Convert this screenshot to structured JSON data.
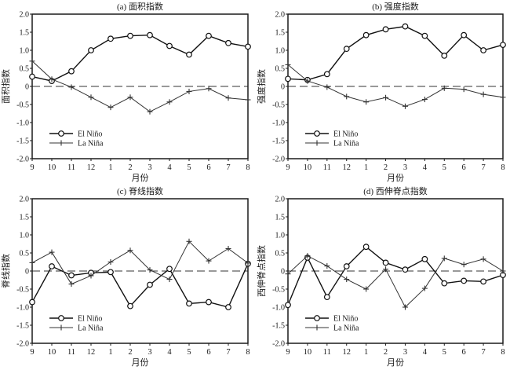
{
  "chart_data": [
    {
      "type": "line",
      "title": "(a) 面积指数",
      "xlabel": "月份",
      "ylabel": "面积指数",
      "categories": [
        "9",
        "10",
        "11",
        "12",
        "1",
        "2",
        "3",
        "4",
        "5",
        "6",
        "7",
        "8"
      ],
      "ylim": [
        -2.0,
        2.0
      ],
      "yticks": [
        "2.0",
        "1.5",
        "1.0",
        "0.5",
        "0",
        "-0.5",
        "-1.0",
        "-1.5",
        "-2.0"
      ],
      "ytick_values": [
        2.0,
        1.5,
        1.0,
        0.5,
        0,
        -0.5,
        -1.0,
        -1.5,
        -2.0
      ],
      "reference_line": 0,
      "legend_position": "bottom-left",
      "series": [
        {
          "name": "El Niño",
          "marker": "circle",
          "values": [
            0.27,
            0.15,
            0.42,
            1.0,
            1.32,
            1.4,
            1.42,
            1.12,
            0.88,
            1.4,
            1.2,
            1.1
          ]
        },
        {
          "name": "La Niña",
          "marker": "plus",
          "values": [
            0.7,
            0.2,
            -0.02,
            -0.3,
            -0.58,
            -0.3,
            -0.7,
            -0.43,
            -0.14,
            -0.06,
            -0.32,
            -0.37
          ]
        }
      ]
    },
    {
      "type": "line",
      "title": "(b) 强度指数",
      "xlabel": "月份",
      "ylabel": "强度指数",
      "categories": [
        "9",
        "10",
        "11",
        "12",
        "1",
        "2",
        "3",
        "4",
        "5",
        "6",
        "7",
        "8"
      ],
      "ylim": [
        -2.0,
        2.0
      ],
      "yticks": [
        "2.0",
        "1.5",
        "1.0",
        "0.5",
        "0",
        "-0.5",
        "-1.0",
        "-1.5",
        "-2.0"
      ],
      "ytick_values": [
        2.0,
        1.5,
        1.0,
        0.5,
        0,
        -0.5,
        -1.0,
        -1.5,
        -2.0
      ],
      "reference_line": 0,
      "legend_position": "bottom-left",
      "series": [
        {
          "name": "El Niño",
          "marker": "circle",
          "values": [
            0.21,
            0.18,
            0.34,
            1.04,
            1.42,
            1.58,
            1.66,
            1.4,
            0.85,
            1.42,
            1.0,
            1.15
          ]
        },
        {
          "name": "La Niña",
          "marker": "plus",
          "values": [
            0.6,
            0.15,
            -0.02,
            -0.28,
            -0.43,
            -0.31,
            -0.55,
            -0.36,
            -0.05,
            -0.08,
            -0.22,
            -0.3
          ]
        }
      ]
    },
    {
      "type": "line",
      "title": "(c) 脊线指数",
      "xlabel": "月份",
      "ylabel": "脊线指数",
      "categories": [
        "9",
        "10",
        "11",
        "12",
        "1",
        "2",
        "3",
        "4",
        "5",
        "6",
        "7",
        "8"
      ],
      "ylim": [
        -2.0,
        2.0
      ],
      "yticks": [
        "2.0",
        "1.5",
        "1.0",
        "0.5",
        "0",
        "-0.5",
        "-1.0",
        "-1.5",
        "-2.0"
      ],
      "ytick_values": [
        2.0,
        1.5,
        1.0,
        0.5,
        0,
        -0.5,
        -1.0,
        -1.5,
        -2.0
      ],
      "reference_line": 0,
      "legend_position": "bottom-left",
      "series": [
        {
          "name": "El Niño",
          "marker": "circle",
          "values": [
            -0.86,
            0.13,
            -0.12,
            -0.05,
            -0.03,
            -0.97,
            -0.38,
            0.06,
            -0.9,
            -0.86,
            -1.0,
            0.2
          ]
        },
        {
          "name": "La Niña",
          "marker": "plus",
          "values": [
            0.23,
            0.52,
            -0.36,
            -0.13,
            0.25,
            0.57,
            0.03,
            -0.23,
            0.82,
            0.28,
            0.62,
            0.22
          ]
        }
      ]
    },
    {
      "type": "line",
      "title": "(d) 西伸脊点指数",
      "xlabel": "月份",
      "ylabel": "西伸脊点指数",
      "categories": [
        "9",
        "10",
        "11",
        "12",
        "1",
        "2",
        "3",
        "4",
        "5",
        "6",
        "7",
        "8"
      ],
      "ylim": [
        -2.0,
        2.0
      ],
      "yticks": [
        "2.0",
        "1.5",
        "1.0",
        "0.5",
        "0",
        "-0.5",
        "-1.0",
        "-1.5",
        "-2.0"
      ],
      "ytick_values": [
        2.0,
        1.5,
        1.0,
        0.5,
        0,
        -0.5,
        -1.0,
        -1.5,
        -2.0
      ],
      "reference_line": 0,
      "legend_position": "bottom-left",
      "series": [
        {
          "name": "El Niño",
          "marker": "circle",
          "values": [
            -0.94,
            0.37,
            -0.72,
            0.13,
            0.67,
            0.23,
            0.04,
            0.33,
            -0.34,
            -0.27,
            -0.29,
            -0.11
          ]
        },
        {
          "name": "La Niña",
          "marker": "plus",
          "values": [
            -0.08,
            0.42,
            0.14,
            -0.23,
            -0.5,
            0.05,
            -1.0,
            -0.48,
            0.35,
            0.18,
            0.33,
            0.0
          ]
        }
      ]
    }
  ],
  "colors": {
    "axis": "#1a1a1a",
    "el_nino": "#111111",
    "la_nina": "#333333",
    "reference_line": "#333333"
  }
}
